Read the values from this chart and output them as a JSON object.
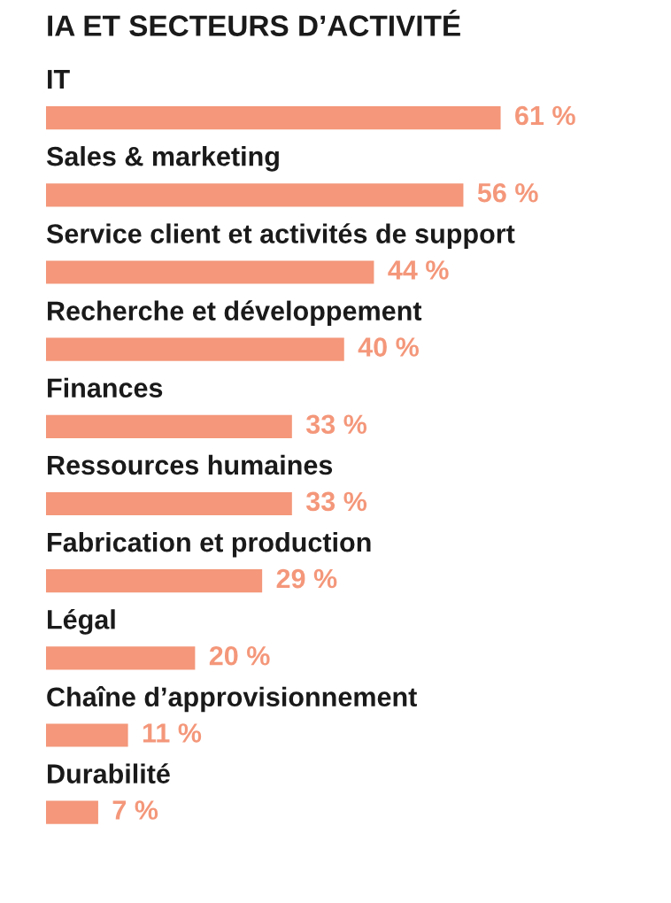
{
  "chart_data": {
    "type": "bar",
    "orientation": "horizontal",
    "title": "IA ET SECTEURS D’ACTIVITÉ",
    "categories": [
      "IT",
      "Sales & marketing",
      "Service client et activités de support",
      "Recherche et développement",
      "Finances",
      "Ressources humaines",
      "Fabrication et production",
      "Légal",
      "Chaîne d’approvisionnement",
      "Durabilité"
    ],
    "values": [
      61,
      56,
      44,
      40,
      33,
      33,
      29,
      20,
      11,
      7
    ],
    "value_labels": [
      "61 %",
      "56 %",
      "44 %",
      "40 %",
      "33 %",
      "33 %",
      "29 %",
      "20 %",
      "11 %",
      "7 %"
    ],
    "color": "#f4977a"
  }
}
